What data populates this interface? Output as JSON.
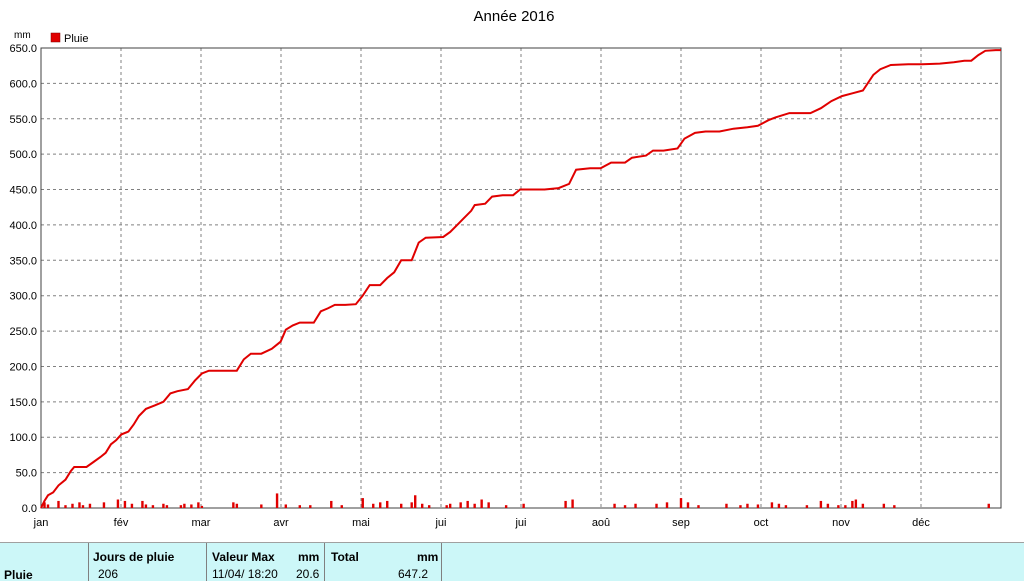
{
  "chart_data": {
    "type": "line",
    "title": "Année 2016",
    "ylabel": "mm",
    "ylim": [
      0,
      650
    ],
    "yticks": [
      "0.0",
      "50.0",
      "100.0",
      "150.0",
      "200.0",
      "250.0",
      "300.0",
      "350.0",
      "400.0",
      "450.0",
      "500.0",
      "550.0",
      "600.0",
      "650.0"
    ],
    "categories": [
      "jan",
      "fév",
      "mar",
      "avr",
      "mai",
      "jui",
      "jui",
      "aoû",
      "sep",
      "oct",
      "nov",
      "déc"
    ],
    "grid": true,
    "legend": {
      "placement": "top-left",
      "entries": [
        "Pluie"
      ]
    },
    "series": [
      {
        "name": "Pluie",
        "kind": "cumulative",
        "color": "#e00000",
        "points": [
          [
            0,
            0
          ],
          [
            2,
            10
          ],
          [
            4,
            18
          ],
          [
            7,
            22
          ],
          [
            10,
            32
          ],
          [
            14,
            40
          ],
          [
            17,
            52
          ],
          [
            19,
            58
          ],
          [
            26,
            58
          ],
          [
            30,
            65
          ],
          [
            34,
            72
          ],
          [
            37,
            78
          ],
          [
            40,
            90
          ],
          [
            43,
            96
          ],
          [
            46,
            104
          ],
          [
            50,
            108
          ],
          [
            53,
            118
          ],
          [
            56,
            130
          ],
          [
            60,
            140
          ],
          [
            65,
            145
          ],
          [
            70,
            150
          ],
          [
            74,
            162
          ],
          [
            78,
            165
          ],
          [
            84,
            168
          ],
          [
            88,
            180
          ],
          [
            92,
            190
          ],
          [
            96,
            194
          ],
          [
            104,
            194
          ],
          [
            112,
            194
          ],
          [
            116,
            210
          ],
          [
            120,
            218
          ],
          [
            126,
            218
          ],
          [
            132,
            225
          ],
          [
            137,
            235
          ],
          [
            140,
            252
          ],
          [
            144,
            258
          ],
          [
            148,
            262
          ],
          [
            156,
            262
          ],
          [
            160,
            278
          ],
          [
            164,
            282
          ],
          [
            168,
            287
          ],
          [
            174,
            287
          ],
          [
            180,
            288
          ],
          [
            184,
            300
          ],
          [
            188,
            315
          ],
          [
            194,
            315
          ],
          [
            198,
            325
          ],
          [
            202,
            333
          ],
          [
            206,
            350
          ],
          [
            212,
            350
          ],
          [
            216,
            375
          ],
          [
            220,
            382
          ],
          [
            230,
            383
          ],
          [
            234,
            390
          ],
          [
            238,
            400
          ],
          [
            242,
            410
          ],
          [
            246,
            420
          ],
          [
            248,
            428
          ],
          [
            254,
            430
          ],
          [
            258,
            440
          ],
          [
            264,
            442
          ],
          [
            270,
            442
          ],
          [
            274,
            450
          ],
          [
            280,
            450
          ],
          [
            288,
            450
          ],
          [
            296,
            452
          ],
          [
            302,
            458
          ],
          [
            306,
            478
          ],
          [
            314,
            480
          ],
          [
            320,
            480
          ],
          [
            326,
            488
          ],
          [
            334,
            488
          ],
          [
            338,
            495
          ],
          [
            346,
            498
          ],
          [
            350,
            505
          ],
          [
            356,
            505
          ],
          [
            364,
            508
          ],
          [
            368,
            522
          ],
          [
            374,
            530
          ],
          [
            380,
            532
          ],
          [
            388,
            532
          ],
          [
            396,
            536
          ],
          [
            404,
            538
          ],
          [
            410,
            540
          ],
          [
            416,
            548
          ],
          [
            420,
            552
          ],
          [
            428,
            558
          ],
          [
            434,
            558
          ],
          [
            440,
            558
          ],
          [
            446,
            565
          ],
          [
            452,
            575
          ],
          [
            458,
            582
          ],
          [
            464,
            586
          ],
          [
            470,
            590
          ],
          [
            476,
            612
          ],
          [
            480,
            620
          ],
          [
            486,
            626
          ],
          [
            496,
            627
          ],
          [
            504,
            627
          ],
          [
            514,
            628
          ],
          [
            522,
            630
          ],
          [
            528,
            632
          ],
          [
            532,
            632
          ],
          [
            536,
            640
          ],
          [
            540,
            646
          ],
          [
            546,
            647
          ],
          [
            549,
            647
          ]
        ]
      },
      {
        "name": "Pluie",
        "kind": "daily",
        "color": "#e00000",
        "bars": [
          [
            2,
            8
          ],
          [
            4,
            5
          ],
          [
            10,
            10
          ],
          [
            14,
            4
          ],
          [
            18,
            6
          ],
          [
            22,
            8
          ],
          [
            24,
            4
          ],
          [
            28,
            6
          ],
          [
            36,
            8
          ],
          [
            44,
            12
          ],
          [
            48,
            10
          ],
          [
            52,
            6
          ],
          [
            58,
            10
          ],
          [
            60,
            5
          ],
          [
            64,
            4
          ],
          [
            70,
            6
          ],
          [
            72,
            4
          ],
          [
            80,
            4
          ],
          [
            82,
            6
          ],
          [
            86,
            5
          ],
          [
            90,
            8
          ],
          [
            92,
            3
          ],
          [
            110,
            8
          ],
          [
            112,
            6
          ],
          [
            126,
            5
          ],
          [
            135,
            20.6
          ],
          [
            140,
            5
          ],
          [
            148,
            4
          ],
          [
            154,
            4
          ],
          [
            166,
            10
          ],
          [
            172,
            4
          ],
          [
            184,
            14
          ],
          [
            190,
            6
          ],
          [
            194,
            8
          ],
          [
            198,
            10
          ],
          [
            206,
            6
          ],
          [
            212,
            8
          ],
          [
            214,
            18
          ],
          [
            218,
            6
          ],
          [
            222,
            4
          ],
          [
            232,
            4
          ],
          [
            234,
            6
          ],
          [
            240,
            8
          ],
          [
            244,
            10
          ],
          [
            248,
            6
          ],
          [
            252,
            12
          ],
          [
            256,
            8
          ],
          [
            266,
            4
          ],
          [
            276,
            6
          ],
          [
            300,
            10
          ],
          [
            304,
            12
          ],
          [
            328,
            6
          ],
          [
            334,
            4
          ],
          [
            340,
            6
          ],
          [
            352,
            6
          ],
          [
            358,
            8
          ],
          [
            366,
            14
          ],
          [
            370,
            8
          ],
          [
            376,
            4
          ],
          [
            392,
            6
          ],
          [
            400,
            4
          ],
          [
            404,
            6
          ],
          [
            410,
            5
          ],
          [
            418,
            8
          ],
          [
            422,
            6
          ],
          [
            426,
            4
          ],
          [
            438,
            4
          ],
          [
            446,
            10
          ],
          [
            450,
            6
          ],
          [
            456,
            4
          ],
          [
            460,
            4
          ],
          [
            464,
            10
          ],
          [
            466,
            12
          ],
          [
            470,
            6
          ],
          [
            482,
            6
          ],
          [
            488,
            4
          ],
          [
            542,
            6
          ]
        ]
      }
    ]
  },
  "footer": {
    "row_label": "Pluie",
    "col1_header": "Jours de pluie",
    "col1_value": "206",
    "col2_header": "Valeur Max",
    "col2_unit": "mm",
    "col2_date": "11/04/  18:20",
    "col2_value": "20.6",
    "col3_header": "Total",
    "col3_unit": "mm",
    "col3_value": "647.2"
  }
}
